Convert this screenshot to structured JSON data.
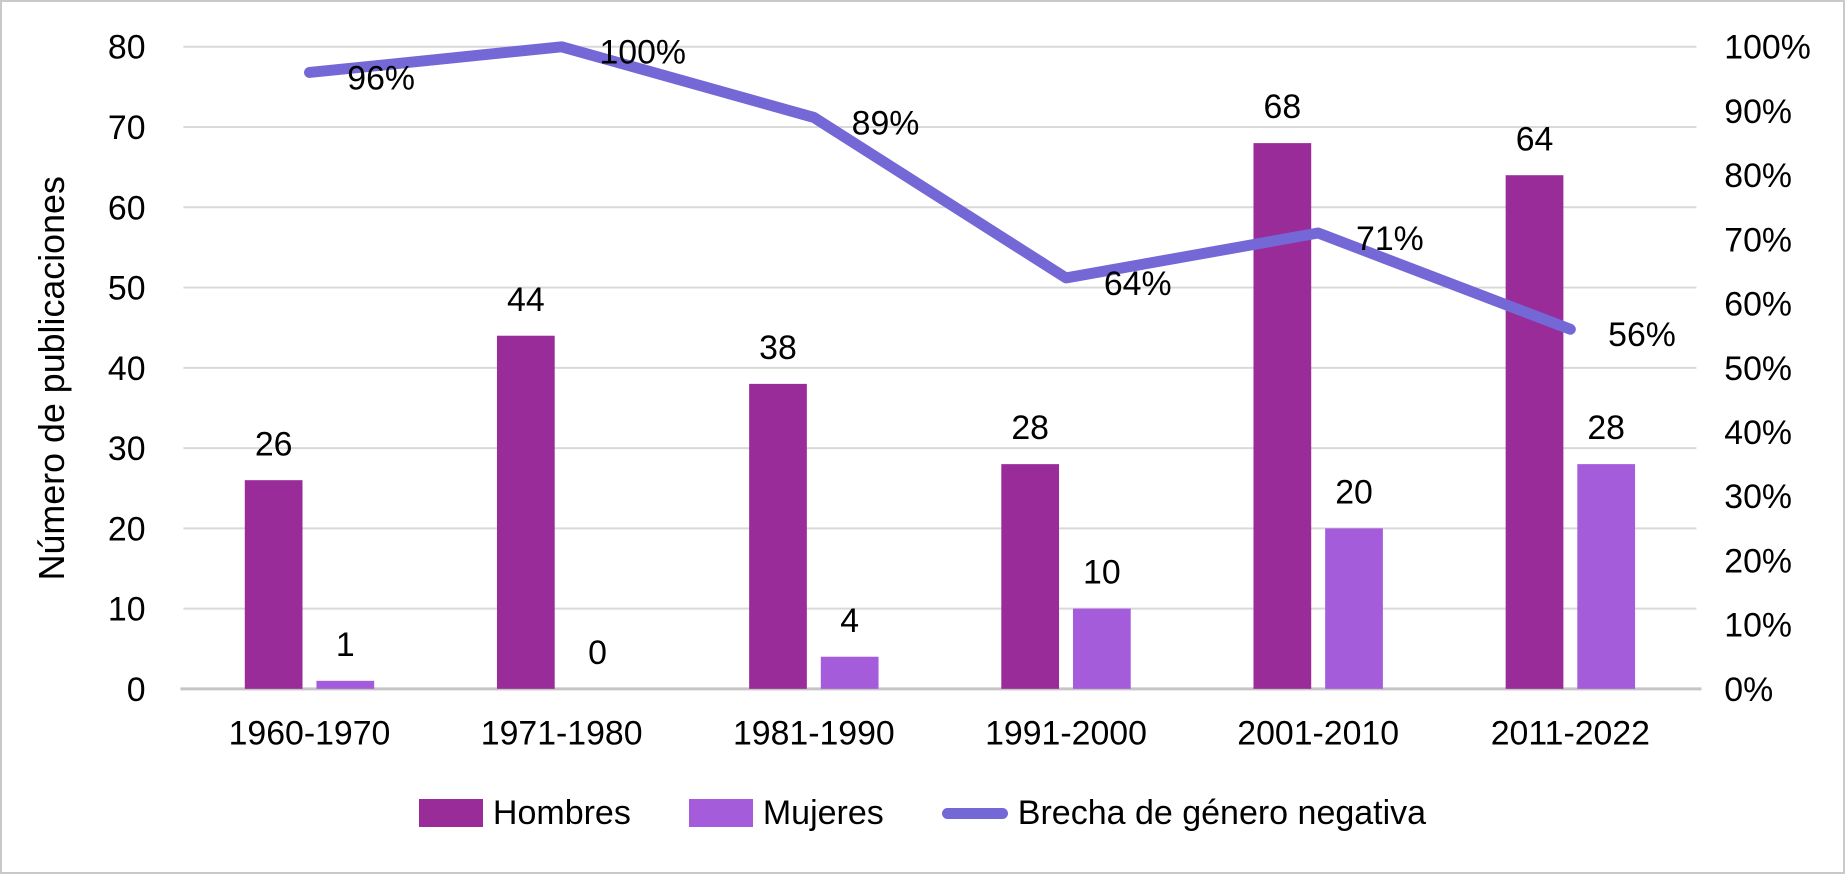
{
  "chart_data": {
    "type": "bar+line combo",
    "categories": [
      "1960-1970",
      "1971-1980",
      "1981-1990",
      "1991-2000",
      "2001-2010",
      "2011-2022"
    ],
    "series": [
      {
        "name": "Hombres",
        "type": "bar",
        "axis": "left",
        "color": "#9a2c9a",
        "values": [
          26,
          44,
          38,
          28,
          68,
          64
        ],
        "value_labels": [
          "26",
          "44",
          "38",
          "28",
          "68",
          "64"
        ]
      },
      {
        "name": "Mujeres",
        "type": "bar",
        "axis": "left",
        "color": "#a55cda",
        "values": [
          1,
          0,
          4,
          10,
          20,
          28
        ],
        "value_labels": [
          "1",
          "0",
          "4",
          "10",
          "20",
          "28"
        ]
      },
      {
        "name": "Brecha de género negativa",
        "type": "line",
        "axis": "right",
        "color": "#7467d6",
        "values": [
          96,
          100,
          89,
          64,
          71,
          56
        ],
        "value_labels": [
          "96%",
          "100%",
          "89%",
          "64%",
          "71%",
          "56%"
        ]
      }
    ],
    "left_axis": {
      "title": "Número de publicaciones",
      "min": 0,
      "max": 80,
      "step": 10,
      "tick_labels": [
        "0",
        "10",
        "20",
        "30",
        "40",
        "50",
        "60",
        "70",
        "80"
      ]
    },
    "right_axis": {
      "min": 0,
      "max": 100,
      "step": 10,
      "tick_labels": [
        "0%",
        "10%",
        "20%",
        "30%",
        "40%",
        "50%",
        "60%",
        "70%",
        "80%",
        "90%",
        "100%"
      ]
    },
    "grid": true,
    "legend_position": "bottom",
    "colors": {
      "gridline": "#d9d9d9",
      "axis_line": "#c6c4c4",
      "text": "#000000",
      "background": "#ffffff"
    }
  }
}
